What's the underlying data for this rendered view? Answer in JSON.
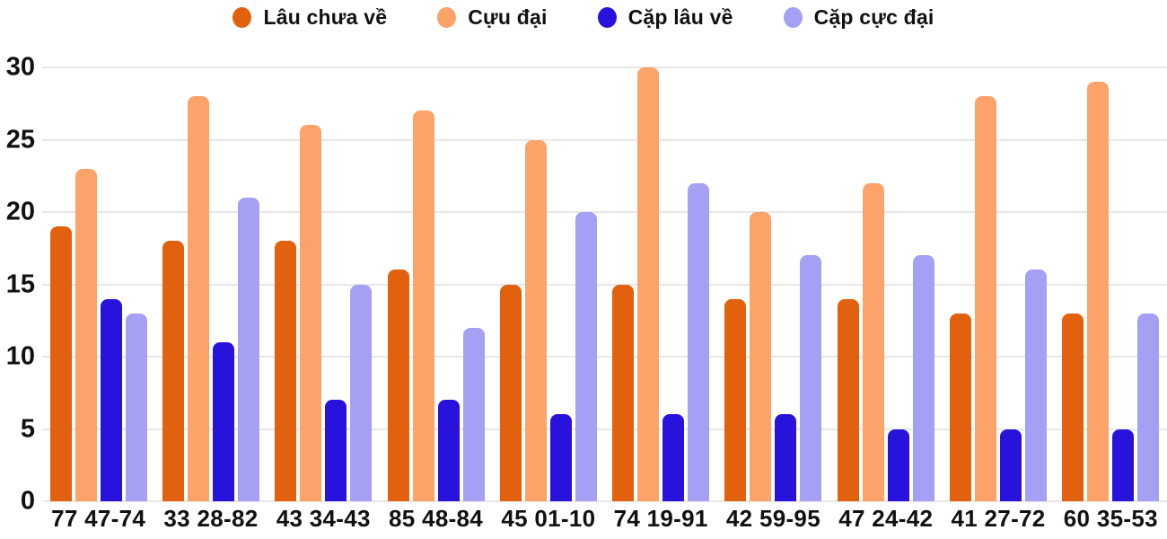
{
  "chart_data": {
    "type": "bar",
    "categories": [
      "77 47-74",
      "33 28-82",
      "43 34-43",
      "85 48-84",
      "45 01-10",
      "74 19-91",
      "42 59-95",
      "47 24-42",
      "41 27-72",
      "60 35-53"
    ],
    "series": [
      {
        "name": "Lâu chưa về",
        "color": "#E2610E",
        "values": [
          19,
          18,
          18,
          16,
          15,
          15,
          14,
          14,
          13,
          13
        ]
      },
      {
        "name": "Cựu đại",
        "color": "#FBA369",
        "values": [
          23,
          28,
          26,
          27,
          25,
          30,
          20,
          22,
          28,
          29
        ]
      },
      {
        "name": "Cặp lâu về",
        "color": "#2713DC",
        "values": [
          14,
          11,
          7,
          7,
          6,
          6,
          6,
          5,
          5,
          5
        ]
      },
      {
        "name": "Cặp cực đại",
        "color": "#A5A0F3",
        "values": [
          13,
          21,
          15,
          12,
          20,
          22,
          17,
          17,
          16,
          13
        ]
      }
    ],
    "ylim": [
      0,
      30
    ],
    "yticks": [
      0,
      5,
      10,
      15,
      20,
      25,
      30
    ],
    "grid": "horizontal",
    "legend_position": "top",
    "axis_text_color": "#111111",
    "gridline_color": "#e8e8e8"
  }
}
